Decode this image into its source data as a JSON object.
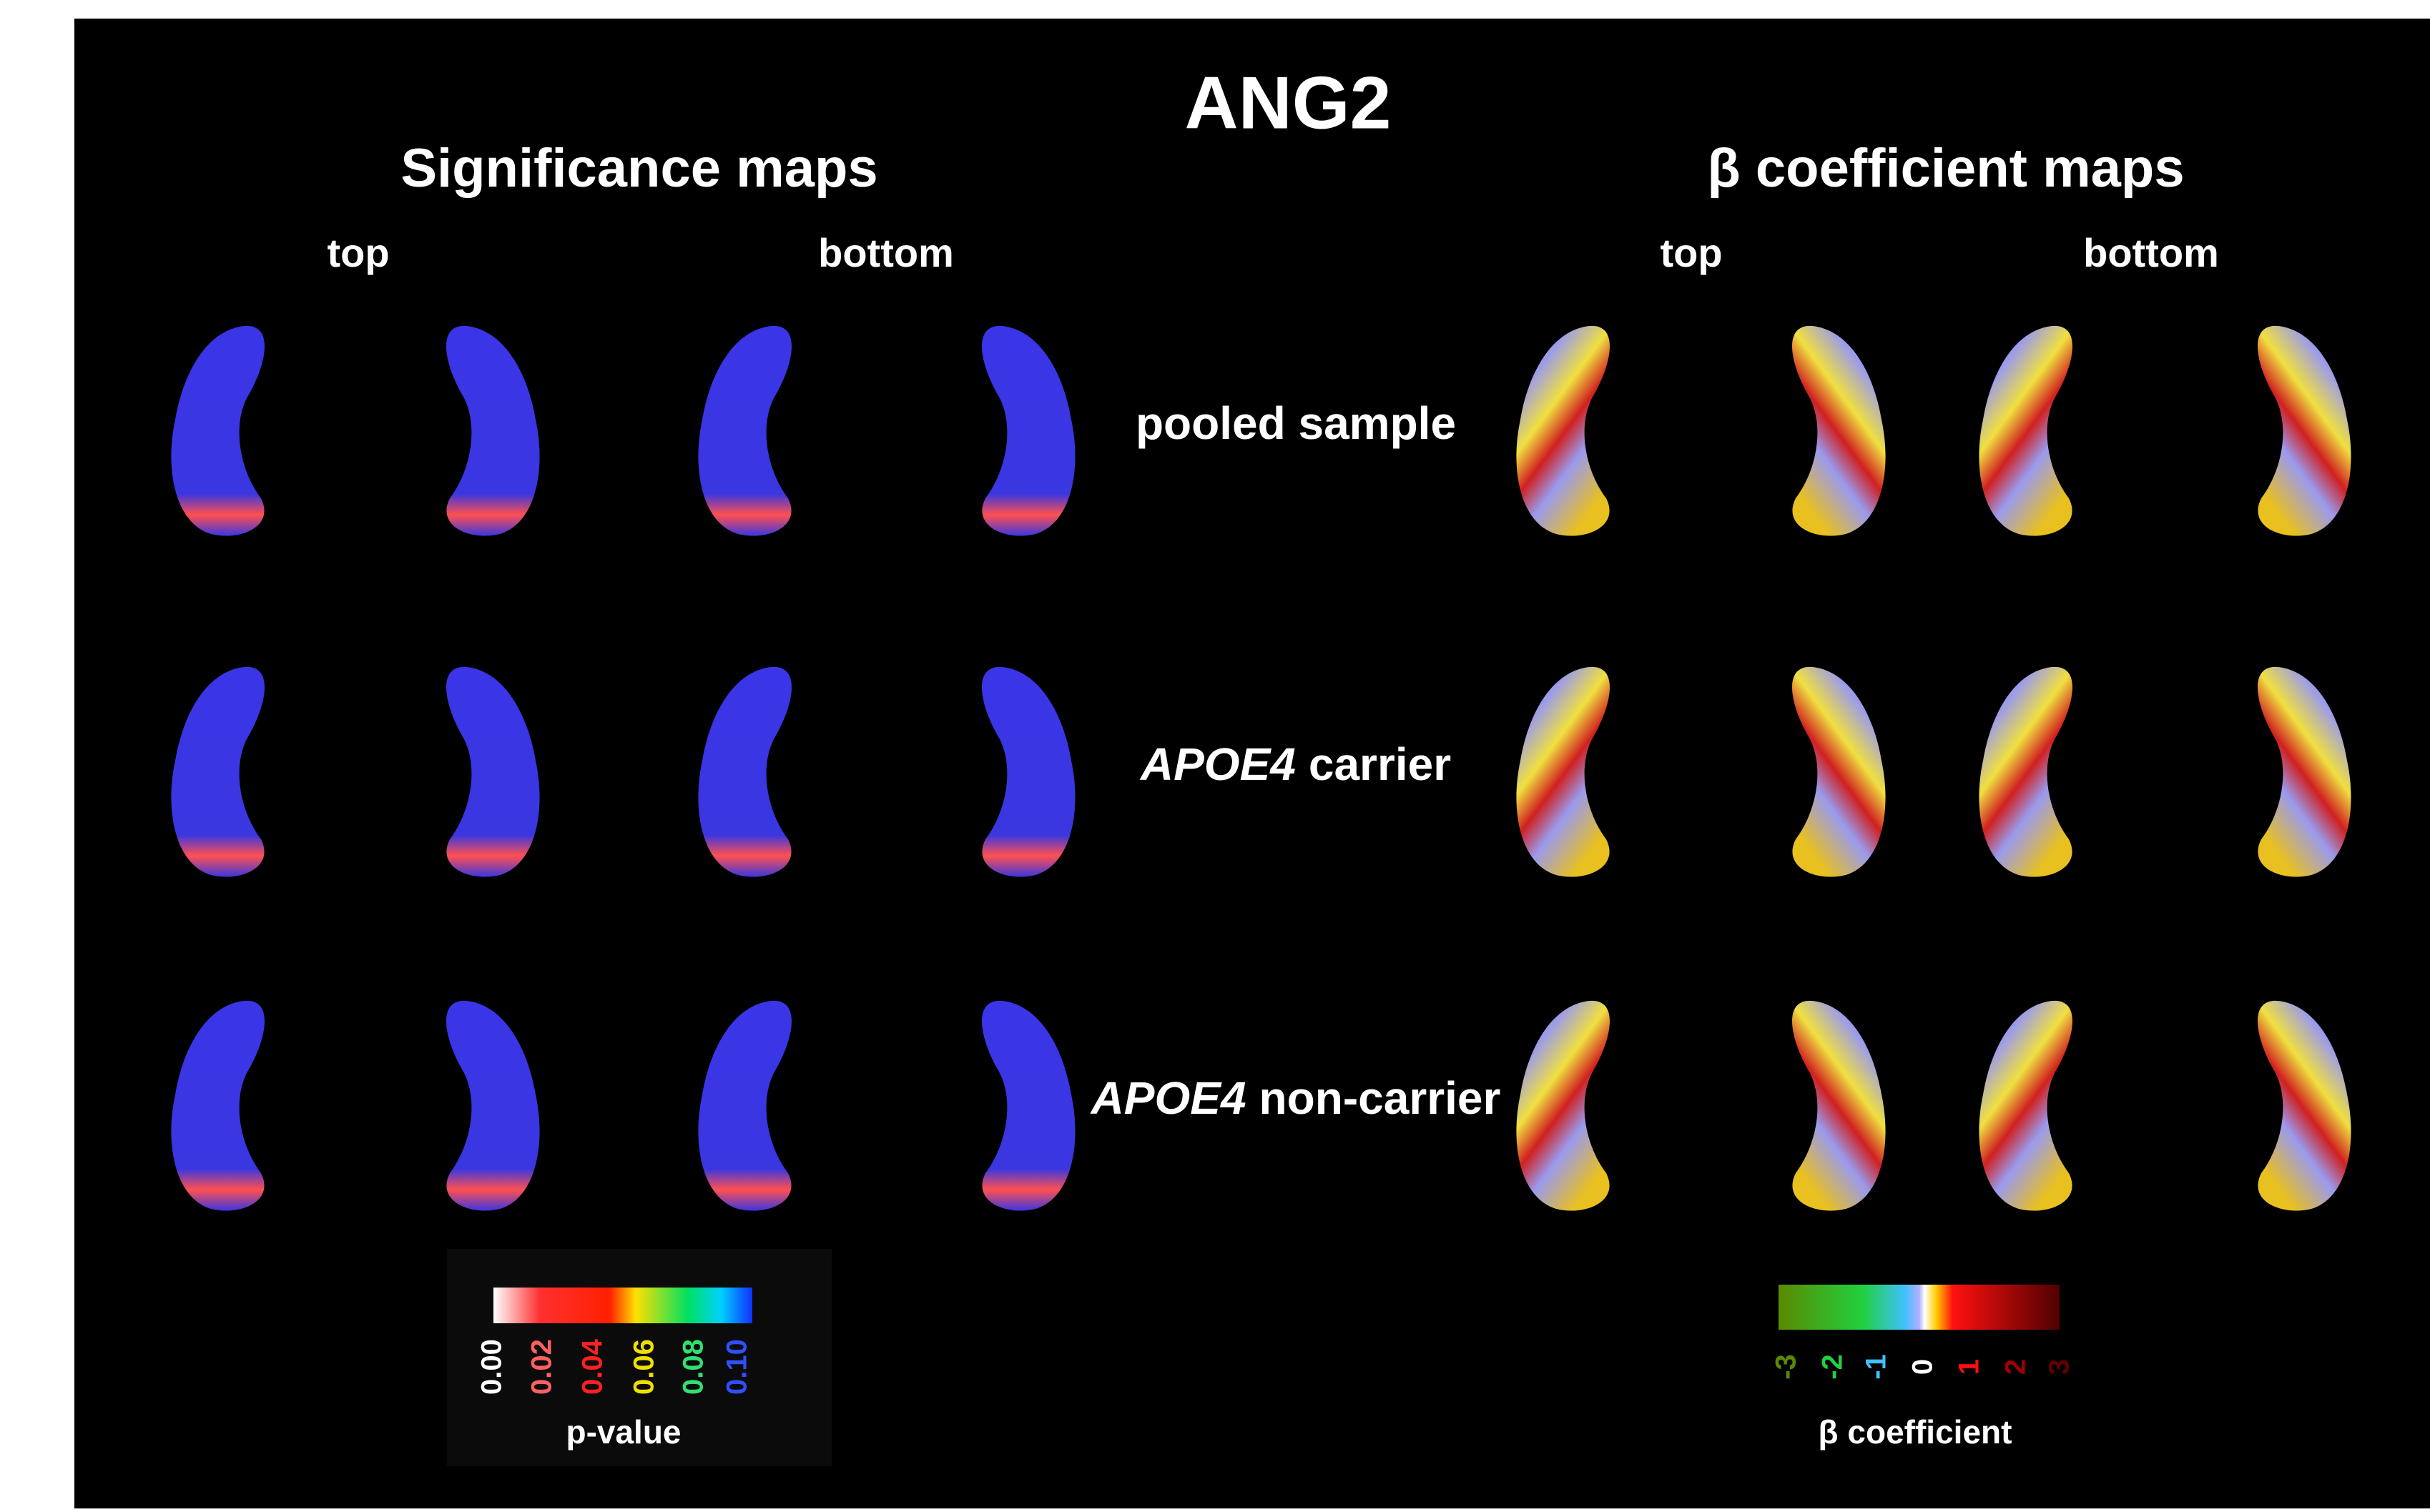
{
  "title": "ANG2",
  "panels": [
    {
      "title": "Significance maps",
      "views": [
        "top",
        "bottom"
      ]
    },
    {
      "title": "β coefficient maps",
      "views": [
        "top",
        "bottom"
      ]
    }
  ],
  "rows": [
    {
      "label": "pooled sample"
    },
    {
      "italic": "APOE4",
      "label": "carrier"
    },
    {
      "italic": "APOE4",
      "label": "non-carrier"
    }
  ],
  "legends": [
    {
      "title": "p-value",
      "ticks": [
        "0.00",
        "0.02",
        "0.04",
        "0.06",
        "0.08",
        "0.10"
      ]
    },
    {
      "title": "β coefficient",
      "ticks": [
        "-3",
        "-2",
        "-1",
        "0",
        "1",
        "2",
        "3"
      ]
    }
  ]
}
